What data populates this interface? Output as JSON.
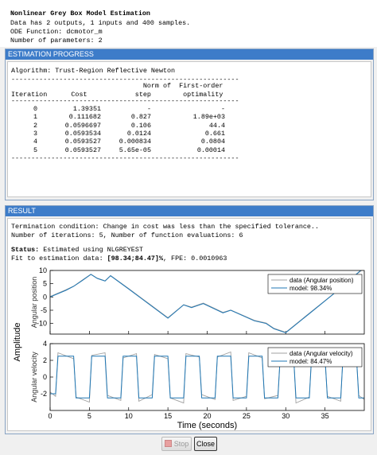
{
  "header": {
    "title": "Nonlinear Grey Box Model Estimation",
    "lines": [
      "Data has 2 outputs, 1 inputs and 400 samples.",
      "ODE Function: dcmotor_m",
      "Number of parameters: 2"
    ]
  },
  "progress": {
    "title": "ESTIMATION PROGRESS",
    "algorithm": "Algorithm: Trust-Region Reflective Newton",
    "separator": "---------------------------------------------------------",
    "header_lines": [
      "                                 Norm of  First-order",
      "Iteration      Cost            step        optimality"
    ],
    "rows": [
      [
        "0",
        "1.39351",
        "-",
        "-"
      ],
      [
        "1",
        "0.111682",
        "0.827",
        "1.89e+03"
      ],
      [
        "2",
        "0.0596697",
        "0.106",
        "44.4"
      ],
      [
        "3",
        "0.0593534",
        "0.0124",
        "0.661"
      ],
      [
        "4",
        "0.0593527",
        "0.000834",
        "0.0804"
      ],
      [
        "5",
        "0.0593527",
        "5.65e-05",
        "0.00014"
      ]
    ]
  },
  "result": {
    "title": "RESULT",
    "termination": "Termination condition: Change in cost was less than the specified tolerance..",
    "iterations": "Number of iterations: 5, Number of function evaluations: 6",
    "status_label": "Status:",
    "status": "Estimated using NLGREYEST",
    "fit_label": "Fit to estimation data: ",
    "fit_value": "[98.34;84.47]%",
    "fit_rest": ", FPE: 0.0010963"
  },
  "figure": {
    "ylabel": "Amplitude"
  },
  "chart_data": [
    {
      "type": "line",
      "ylabel": "Angular position",
      "x": [
        0,
        2,
        3,
        4,
        5.2,
        6,
        7,
        7.7,
        10,
        12,
        15,
        17,
        18,
        19.5,
        22,
        23,
        26,
        27.5,
        28.5,
        30,
        33,
        36,
        39.5,
        40
      ],
      "xlim": [
        0,
        40
      ],
      "ylim": [
        -14,
        10
      ],
      "yticks": [
        -10,
        -5,
        0,
        5,
        10
      ],
      "legend": "northeast",
      "series": [
        {
          "name": "data (Angular position)",
          "color": "#a0a0a0",
          "values": [
            0.2,
            2.7,
            4.1,
            6.2,
            8.6,
            7.1,
            6.1,
            8.1,
            3.2,
            -1.2,
            -7.8,
            -2.9,
            -3.8,
            -2.3,
            -5.8,
            -4.9,
            -8.8,
            -9.8,
            -11.8,
            -13.3,
            -6.1,
            1.0,
            9.7,
            10.6
          ]
        },
        {
          "name": "model: 98.34%",
          "color": "#1f77b4",
          "values": [
            0,
            2.5,
            4,
            6,
            8.5,
            7,
            6,
            8,
            3,
            -1.4,
            -8,
            -3,
            -4,
            -2.5,
            -6,
            -5,
            -9,
            -10,
            -12,
            -13.5,
            -6.3,
            0.9,
            9.9,
            11
          ]
        }
      ]
    },
    {
      "type": "line",
      "ylabel": "Angular velocity",
      "xlabel": "Time (seconds)",
      "x": [
        0,
        0.7,
        1,
        3,
        3.3,
        5,
        5.3,
        7,
        7.3,
        9,
        9.3,
        11,
        11.3,
        13,
        13.3,
        15,
        15.3,
        17,
        17.3,
        19,
        19.3,
        21,
        21.3,
        23,
        23.3,
        25,
        25.3,
        27,
        27.3,
        29,
        29.3,
        31,
        31.3,
        33,
        33.3,
        35,
        35.3,
        37,
        37.3,
        39,
        39.3,
        40
      ],
      "xlim": [
        0,
        40
      ],
      "xticks": [
        0,
        5,
        10,
        15,
        20,
        25,
        30,
        35
      ],
      "ylim": [
        -4,
        4
      ],
      "yticks": [
        -2,
        0,
        2,
        4
      ],
      "legend": "northeast",
      "series": [
        {
          "name": "data (Angular velocity)",
          "color": "#a0a0a0",
          "values": [
            -1.8,
            -2.3,
            2.9,
            2.2,
            -2.4,
            -3.0,
            2.6,
            2.9,
            -2.2,
            -2.8,
            2.3,
            2.8,
            -2.9,
            -2.1,
            2.7,
            2.2,
            -2.5,
            -3.1,
            2.8,
            2.4,
            -2.1,
            -2.7,
            2.4,
            3.0,
            -2.8,
            -2.3,
            2.9,
            2.3,
            -2.6,
            -2.2,
            2.2,
            2.8,
            -3.1,
            -2.4,
            2.6,
            2.1,
            -2.3,
            -2.9,
            2.8,
            2.5,
            -2.2,
            -2.7
          ]
        },
        {
          "name": "model: 84.47%",
          "color": "#1f77b4",
          "values": [
            -2,
            -2,
            2.5,
            2.5,
            -2.5,
            -2.5,
            2.5,
            2.5,
            -2.5,
            -2.5,
            2.5,
            2.5,
            -2.5,
            -2.5,
            2.5,
            2.5,
            -2.5,
            -2.5,
            2.5,
            2.5,
            -2.5,
            -2.5,
            2.5,
            2.5,
            -2.5,
            -2.5,
            2.5,
            2.5,
            -2.5,
            -2.5,
            2.5,
            2.5,
            -2.5,
            -2.5,
            2.5,
            2.5,
            -2.5,
            -2.5,
            2.5,
            2.5,
            -2.5,
            -2.5
          ]
        }
      ]
    }
  ],
  "buttons": {
    "stop": "Stop",
    "close": "Close"
  }
}
